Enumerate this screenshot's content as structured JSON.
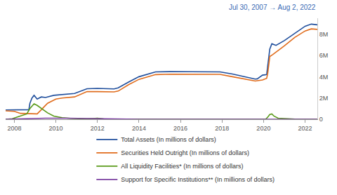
{
  "chart_data": {
    "type": "line",
    "subtitle": "Jul 30, 2007 → Aug 2, 2022",
    "xlim": [
      2007.58,
      2022.59
    ],
    "xticks": [
      2008,
      2010,
      2012,
      2014,
      2016,
      2018,
      2020,
      2022
    ],
    "ylim": [
      0,
      9500000
    ],
    "yticks": [
      0,
      {
        "value": 2000000,
        "label": "2M"
      },
      {
        "value": 4000000,
        "label": "4M"
      },
      {
        "value": 6000000,
        "label": "6M"
      },
      {
        "value": 8000000,
        "label": "8M"
      }
    ],
    "grid": false,
    "legend": "bottom",
    "series": [
      {
        "name": "Total Assets (In millions of dollars)",
        "color": "#1f4e9c",
        "x": [
          2007.58,
          2008.7,
          2008.75,
          2008.85,
          2008.95,
          2009.1,
          2009.3,
          2009.5,
          2009.9,
          2010.5,
          2010.9,
          2011.5,
          2012.0,
          2012.8,
          2013.0,
          2013.5,
          2014.0,
          2014.8,
          2015.5,
          2016.5,
          2017.5,
          2017.9,
          2018.5,
          2019.0,
          2019.6,
          2019.7,
          2019.95,
          2020.15,
          2020.2,
          2020.3,
          2020.4,
          2020.5,
          2020.6,
          2021.0,
          2021.5,
          2022.0,
          2022.3,
          2022.59
        ],
        "values": [
          870000,
          900000,
          1500000,
          2000000,
          2250000,
          1900000,
          2100000,
          2050000,
          2250000,
          2350000,
          2420000,
          2870000,
          2900000,
          2850000,
          2950000,
          3500000,
          4000000,
          4450000,
          4480000,
          4470000,
          4470000,
          4450000,
          4250000,
          4050000,
          3780000,
          3800000,
          4150000,
          4200000,
          5000000,
          6600000,
          7100000,
          7000000,
          6950000,
          7400000,
          8100000,
          8750000,
          8950000,
          8880000
        ]
      },
      {
        "name": "Securities Held Outright (In millions of dollars)",
        "color": "#e06c1c",
        "x": [
          2007.58,
          2008.0,
          2008.3,
          2008.9,
          2009.1,
          2009.3,
          2009.6,
          2010.0,
          2010.3,
          2010.9,
          2011.5,
          2012.0,
          2012.8,
          2013.0,
          2013.5,
          2014.0,
          2014.8,
          2015.5,
          2017.5,
          2017.9,
          2018.5,
          2019.0,
          2019.6,
          2019.95,
          2020.15,
          2020.2,
          2020.3,
          2020.45,
          2021.0,
          2021.5,
          2022.0,
          2022.3,
          2022.59
        ],
        "values": [
          790000,
          740000,
          550000,
          490000,
          500000,
          900000,
          1500000,
          1900000,
          2000000,
          2100000,
          2600000,
          2600000,
          2570000,
          2650000,
          3250000,
          3750000,
          4200000,
          4240000,
          4240000,
          4220000,
          4000000,
          3800000,
          3600000,
          3700000,
          3850000,
          4300000,
          5900000,
          6100000,
          6900000,
          7700000,
          8300000,
          8500000,
          8450000
        ]
      },
      {
        "name": "All Liquidity Facilities* (In millions of dollars)",
        "color": "#5a9a1a",
        "x": [
          2007.58,
          2007.9,
          2008.2,
          2008.6,
          2008.75,
          2008.95,
          2009.1,
          2009.3,
          2009.6,
          2009.9,
          2010.3,
          2010.7,
          2011.5,
          2012.0,
          2012.3,
          2013.0,
          2014.0,
          2020.1,
          2020.2,
          2020.3,
          2020.4,
          2020.5,
          2020.7,
          2021.0,
          2021.5,
          2022.59
        ],
        "values": [
          0,
          50000,
          250000,
          500000,
          1000000,
          1450000,
          1300000,
          1000000,
          600000,
          300000,
          150000,
          80000,
          30000,
          100000,
          30000,
          5000,
          0,
          0,
          200000,
          450000,
          500000,
          300000,
          100000,
          50000,
          10000,
          0
        ]
      },
      {
        "name": "Support for Specific Institutions** (In millions of dollars)",
        "color": "#7b3fa0",
        "x": [
          2007.58,
          2008.2,
          2008.7,
          2009.0,
          2009.5,
          2010.5,
          2011.0,
          2012.0,
          2013.0,
          2014.0,
          2022.59
        ],
        "values": [
          0,
          30000,
          100000,
          110000,
          100000,
          100000,
          80000,
          40000,
          30000,
          1000,
          0
        ]
      }
    ]
  }
}
